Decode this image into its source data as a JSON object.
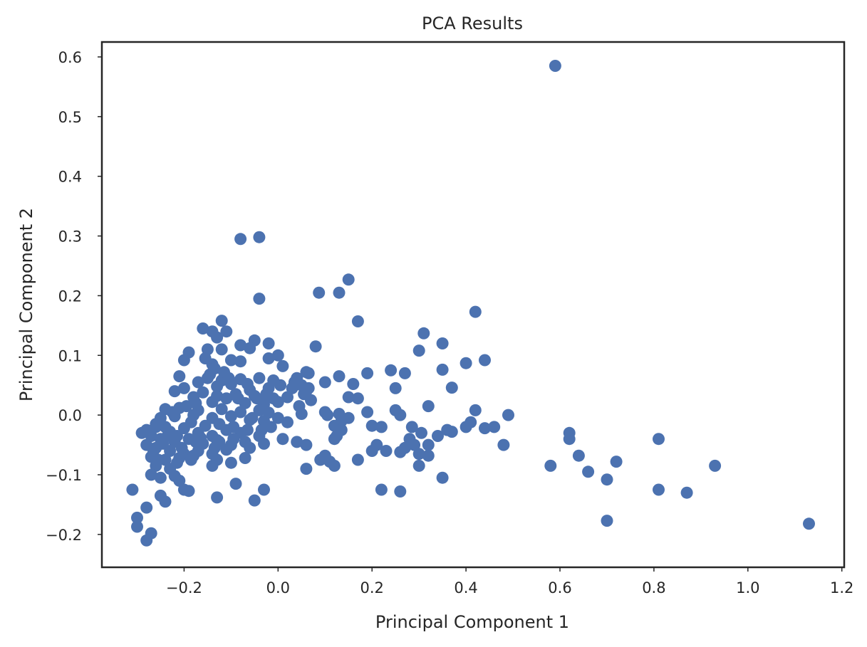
{
  "chart_data": {
    "type": "scatter",
    "title": "PCA Results",
    "xlabel": "Principal Component 1",
    "ylabel": "Principal Component 2",
    "xlim": [
      -0.375,
      1.205
    ],
    "ylim": [
      -0.255,
      0.625
    ],
    "xticks": [
      -0.2,
      0.0,
      0.2,
      0.4,
      0.6,
      0.8,
      1.0,
      1.2
    ],
    "xtick_labels": [
      "−0.2",
      "0.0",
      "0.2",
      "0.4",
      "0.6",
      "0.8",
      "1.0",
      "1.2"
    ],
    "yticks": [
      -0.2,
      -0.1,
      0.0,
      0.1,
      0.2,
      0.3,
      0.4,
      0.5,
      0.6
    ],
    "ytick_labels": [
      "−0.2",
      "−0.1",
      "0.0",
      "0.1",
      "0.2",
      "0.3",
      "0.4",
      "0.5",
      "0.6"
    ],
    "grid": false,
    "marker_color": "#4c72b0",
    "series": [
      {
        "points": [
          [
            0.59,
            0.585
          ],
          [
            -0.08,
            0.295
          ],
          [
            -0.04,
            0.298
          ],
          [
            -0.04,
            0.195
          ],
          [
            0.15,
            0.227
          ],
          [
            0.087,
            0.205
          ],
          [
            0.13,
            0.205
          ],
          [
            0.42,
            0.173
          ],
          [
            0.17,
            0.157
          ],
          [
            -0.12,
            0.158
          ],
          [
            -0.16,
            0.145
          ],
          [
            -0.14,
            0.14
          ],
          [
            -0.11,
            0.14
          ],
          [
            -0.13,
            0.13
          ],
          [
            -0.05,
            0.125
          ],
          [
            -0.02,
            0.12
          ],
          [
            -0.08,
            0.117
          ],
          [
            0.08,
            0.115
          ],
          [
            0.31,
            0.137
          ],
          [
            0.35,
            0.12
          ],
          [
            0.3,
            0.108
          ],
          [
            -0.15,
            0.11
          ],
          [
            -0.19,
            0.105
          ],
          [
            -0.12,
            0.11
          ],
          [
            -0.06,
            0.112
          ],
          [
            0.0,
            0.1
          ],
          [
            -0.02,
            0.095
          ],
          [
            -0.08,
            0.09
          ],
          [
            0.44,
            0.092
          ],
          [
            0.4,
            0.087
          ],
          [
            -0.2,
            0.092
          ],
          [
            -0.14,
            0.085
          ],
          [
            -0.1,
            0.092
          ],
          [
            0.01,
            0.082
          ],
          [
            0.35,
            0.076
          ],
          [
            0.24,
            0.075
          ],
          [
            0.27,
            0.07
          ],
          [
            0.19,
            0.07
          ],
          [
            0.13,
            0.065
          ],
          [
            0.06,
            0.072
          ],
          [
            -0.21,
            0.065
          ],
          [
            -0.15,
            0.062
          ],
          [
            -0.12,
            0.058
          ],
          [
            -0.08,
            0.06
          ],
          [
            -0.04,
            0.062
          ],
          [
            -0.01,
            0.058
          ],
          [
            0.04,
            0.062
          ],
          [
            0.16,
            0.052
          ],
          [
            0.37,
            0.046
          ],
          [
            0.25,
            0.045
          ],
          [
            0.1,
            0.055
          ],
          [
            0.05,
            0.05
          ],
          [
            -0.17,
            0.055
          ],
          [
            -0.13,
            0.048
          ],
          [
            -0.1,
            0.052
          ],
          [
            -0.06,
            0.042
          ],
          [
            -0.02,
            0.045
          ],
          [
            0.03,
            0.045
          ],
          [
            0.06,
            0.04
          ],
          [
            -0.22,
            0.04
          ],
          [
            -0.2,
            0.045
          ],
          [
            -0.16,
            0.038
          ],
          [
            -0.13,
            0.032
          ],
          [
            -0.09,
            0.035
          ],
          [
            -0.05,
            0.032
          ],
          [
            -0.01,
            0.028
          ],
          [
            0.02,
            0.03
          ],
          [
            0.07,
            0.025
          ],
          [
            0.15,
            0.03
          ],
          [
            0.17,
            0.028
          ],
          [
            -0.18,
            0.03
          ],
          [
            -0.14,
            0.022
          ],
          [
            -0.11,
            0.028
          ],
          [
            -0.07,
            0.02
          ],
          [
            -0.03,
            0.018
          ],
          [
            0.0,
            0.022
          ],
          [
            0.32,
            0.015
          ],
          [
            0.42,
            0.008
          ],
          [
            0.25,
            0.008
          ],
          [
            -0.24,
            0.01
          ],
          [
            -0.21,
            0.012
          ],
          [
            -0.17,
            0.008
          ],
          [
            -0.12,
            0.01
          ],
          [
            -0.08,
            0.005
          ],
          [
            -0.04,
            0.008
          ],
          [
            -0.02,
            0.004
          ],
          [
            0.05,
            0.002
          ],
          [
            0.1,
            0.005
          ],
          [
            0.13,
            0.002
          ],
          [
            0.19,
            0.005
          ],
          [
            0.26,
            0.0
          ],
          [
            0.49,
            0.0
          ],
          [
            -0.25,
            -0.005
          ],
          [
            -0.22,
            -0.002
          ],
          [
            -0.18,
            0.0
          ],
          [
            -0.14,
            -0.005
          ],
          [
            -0.1,
            -0.002
          ],
          [
            -0.06,
            -0.008
          ],
          [
            -0.03,
            -0.01
          ],
          [
            0.0,
            -0.005
          ],
          [
            0.15,
            -0.005
          ],
          [
            0.12,
            -0.018
          ],
          [
            0.41,
            -0.012
          ],
          [
            0.4,
            -0.02
          ],
          [
            0.46,
            -0.02
          ],
          [
            0.44,
            -0.022
          ],
          [
            0.36,
            -0.025
          ],
          [
            0.37,
            -0.028
          ],
          [
            0.2,
            -0.018
          ],
          [
            0.22,
            -0.02
          ],
          [
            -0.28,
            -0.025
          ],
          [
            -0.26,
            -0.02
          ],
          [
            -0.23,
            -0.028
          ],
          [
            -0.2,
            -0.022
          ],
          [
            -0.17,
            -0.03
          ],
          [
            -0.14,
            -0.035
          ],
          [
            -0.11,
            -0.025
          ],
          [
            -0.08,
            -0.03
          ],
          [
            -0.04,
            -0.035
          ],
          [
            0.02,
            -0.012
          ],
          [
            -0.27,
            -0.035
          ],
          [
            -0.25,
            -0.04
          ],
          [
            -0.22,
            -0.045
          ],
          [
            -0.19,
            -0.04
          ],
          [
            -0.16,
            -0.048
          ],
          [
            -0.13,
            -0.042
          ],
          [
            -0.1,
            -0.05
          ],
          [
            -0.07,
            -0.045
          ],
          [
            -0.03,
            -0.048
          ],
          [
            0.01,
            -0.04
          ],
          [
            0.04,
            -0.045
          ],
          [
            0.06,
            -0.05
          ],
          [
            0.12,
            -0.04
          ],
          [
            0.2,
            -0.06
          ],
          [
            0.21,
            -0.05
          ],
          [
            0.28,
            -0.04
          ],
          [
            0.29,
            -0.05
          ],
          [
            0.32,
            -0.05
          ],
          [
            0.34,
            -0.035
          ],
          [
            0.48,
            -0.05
          ],
          [
            -0.28,
            -0.05
          ],
          [
            -0.26,
            -0.055
          ],
          [
            -0.23,
            -0.06
          ],
          [
            -0.2,
            -0.065
          ],
          [
            -0.17,
            -0.06
          ],
          [
            -0.14,
            -0.065
          ],
          [
            -0.11,
            -0.058
          ],
          [
            -0.06,
            -0.055
          ],
          [
            0.23,
            -0.06
          ],
          [
            0.26,
            -0.062
          ],
          [
            0.27,
            -0.055
          ],
          [
            0.3,
            -0.065
          ],
          [
            0.32,
            -0.068
          ],
          [
            -0.27,
            -0.07
          ],
          [
            -0.24,
            -0.075
          ],
          [
            -0.21,
            -0.072
          ],
          [
            -0.18,
            -0.068
          ],
          [
            -0.13,
            -0.075
          ],
          [
            -0.1,
            -0.08
          ],
          [
            -0.07,
            -0.072
          ],
          [
            0.09,
            -0.075
          ],
          [
            0.1,
            -0.068
          ],
          [
            0.11,
            -0.078
          ],
          [
            0.17,
            -0.075
          ],
          [
            0.3,
            -0.085
          ],
          [
            0.62,
            -0.03
          ],
          [
            0.62,
            -0.04
          ],
          [
            0.64,
            -0.068
          ],
          [
            0.72,
            -0.078
          ],
          [
            0.81,
            -0.04
          ],
          [
            0.58,
            -0.085
          ],
          [
            0.93,
            -0.085
          ],
          [
            -0.26,
            -0.085
          ],
          [
            -0.23,
            -0.09
          ],
          [
            -0.14,
            -0.085
          ],
          [
            0.06,
            -0.09
          ],
          [
            0.12,
            -0.085
          ],
          [
            0.66,
            -0.095
          ],
          [
            -0.27,
            -0.1
          ],
          [
            -0.25,
            -0.105
          ],
          [
            -0.22,
            -0.102
          ],
          [
            0.35,
            -0.105
          ],
          [
            0.7,
            -0.108
          ],
          [
            -0.21,
            -0.11
          ],
          [
            -0.09,
            -0.115
          ],
          [
            -0.31,
            -0.125
          ],
          [
            -0.2,
            -0.125
          ],
          [
            -0.19,
            -0.127
          ],
          [
            -0.03,
            -0.125
          ],
          [
            0.22,
            -0.125
          ],
          [
            0.26,
            -0.128
          ],
          [
            0.81,
            -0.125
          ],
          [
            0.87,
            -0.13
          ],
          [
            -0.25,
            -0.135
          ],
          [
            -0.24,
            -0.145
          ],
          [
            -0.13,
            -0.138
          ],
          [
            -0.05,
            -0.143
          ],
          [
            -0.28,
            -0.155
          ],
          [
            -0.3,
            -0.172
          ],
          [
            -0.3,
            -0.187
          ],
          [
            0.7,
            -0.177
          ],
          [
            1.13,
            -0.182
          ],
          [
            -0.27,
            -0.198
          ],
          [
            -0.28,
            -0.21
          ],
          [
            -0.29,
            -0.03
          ],
          [
            -0.26,
            -0.015
          ],
          [
            -0.24,
            -0.02
          ],
          [
            -0.215,
            -0.035
          ],
          [
            -0.185,
            -0.012
          ],
          [
            -0.155,
            -0.018
          ],
          [
            -0.125,
            -0.015
          ],
          [
            -0.095,
            -0.02
          ],
          [
            -0.265,
            -0.06
          ],
          [
            -0.245,
            -0.048
          ],
          [
            -0.205,
            -0.055
          ],
          [
            -0.165,
            -0.038
          ],
          [
            -0.135,
            -0.055
          ],
          [
            -0.225,
            0.005
          ],
          [
            -0.195,
            0.015
          ],
          [
            -0.175,
            0.02
          ],
          [
            -0.145,
            0.068
          ],
          [
            -0.115,
            0.072
          ],
          [
            -0.155,
            0.095
          ],
          [
            -0.135,
            0.078
          ],
          [
            -0.105,
            0.062
          ],
          [
            -0.065,
            0.052
          ],
          [
            -0.045,
            0.028
          ],
          [
            -0.025,
            0.035
          ],
          [
            0.005,
            0.05
          ],
          [
            0.035,
            0.055
          ],
          [
            0.055,
            0.035
          ],
          [
            0.065,
            0.045
          ],
          [
            0.045,
            0.015
          ],
          [
            0.105,
            0.0
          ],
          [
            0.135,
            -0.01
          ],
          [
            0.135,
            -0.025
          ],
          [
            0.125,
            -0.035
          ],
          [
            0.285,
            -0.02
          ],
          [
            0.305,
            -0.03
          ],
          [
            0.065,
            0.07
          ],
          [
            -0.085,
            0.028
          ],
          [
            -0.055,
            -0.005
          ],
          [
            -0.015,
            -0.02
          ],
          [
            -0.035,
            -0.025
          ],
          [
            -0.065,
            -0.025
          ],
          [
            -0.095,
            -0.04
          ],
          [
            -0.125,
            -0.045
          ],
          [
            -0.175,
            -0.045
          ],
          [
            -0.235,
            -0.035
          ],
          [
            -0.255,
            -0.075
          ],
          [
            -0.215,
            -0.08
          ],
          [
            -0.185,
            -0.075
          ]
        ]
      }
    ]
  }
}
